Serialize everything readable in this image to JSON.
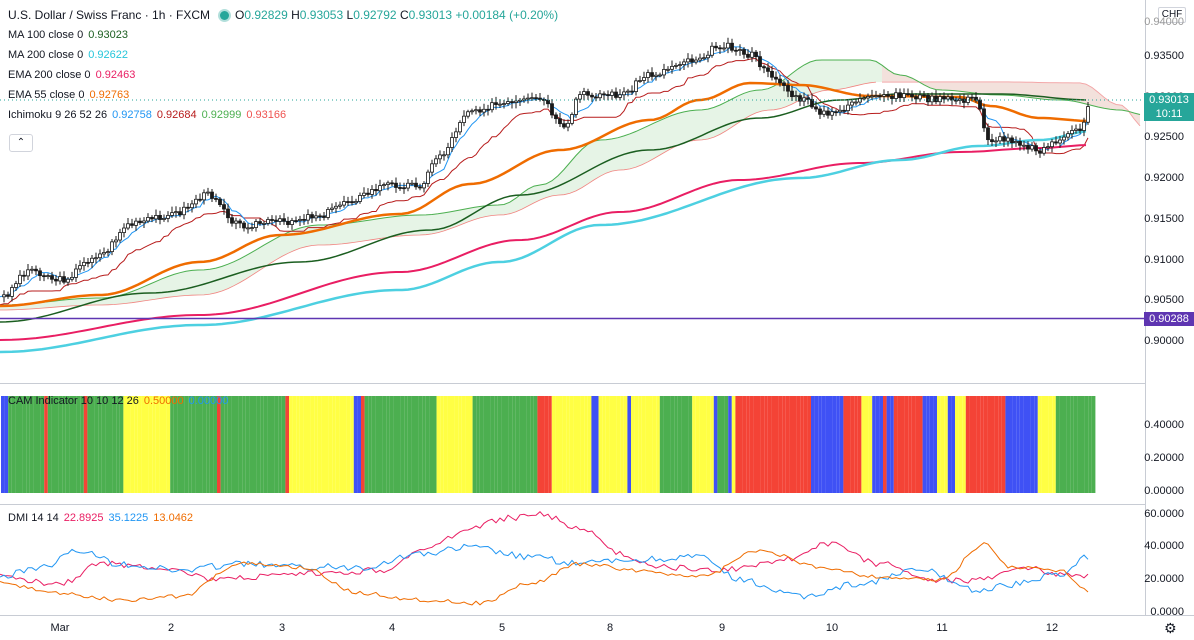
{
  "header": {
    "symbol": "U.S. Dollar / Swiss Franc · 1h · FXCM",
    "open_label": "O",
    "open": "0.92829",
    "high_label": "H",
    "high": "0.93053",
    "low_label": "L",
    "low": "0.92792",
    "close_label": "C",
    "close": "0.93013",
    "change": "+0.00184 (+0.20%)"
  },
  "legends": [
    {
      "name": "MA 100 close 0",
      "values": [
        "0.93023"
      ],
      "colors": [
        "#1b5e20"
      ]
    },
    {
      "name": "MA 200 close 0",
      "values": [
        "0.92622"
      ],
      "colors": [
        "#26c6da"
      ]
    },
    {
      "name": "EMA 200 close 0",
      "values": [
        "0.92463"
      ],
      "colors": [
        "#e91e63"
      ]
    },
    {
      "name": "EMA 55 close 0",
      "values": [
        "0.92763"
      ],
      "colors": [
        "#ef6c00"
      ]
    },
    {
      "name": "Ichimoku 9 26 52 26",
      "values": [
        "0.92758",
        "0.92684",
        "0.92999",
        "0.93166"
      ],
      "colors": [
        "#2196f3",
        "#b71c1c",
        "#4caf50",
        "#ef5350"
      ]
    }
  ],
  "collapse_icon": "chevron-up-icon",
  "currency": "CHF",
  "price_axis": [
    "0.93500",
    "0.93000",
    "0.92500",
    "0.92000",
    "0.91500",
    "0.91000",
    "0.90500",
    "0.90000"
  ],
  "price_axis_top": "0.94000",
  "current_price": "0.93013",
  "countdown": "10:11",
  "hline_price": "0.90288",
  "cam": {
    "label": "CAM Indicator 10 10 12 26",
    "values": [
      "0.50000",
      "0.00000"
    ],
    "axis": [
      "0.40000",
      "0.20000",
      "0.00000"
    ]
  },
  "dmi": {
    "label": "DMI 14 14",
    "values": [
      "22.8925",
      "35.1225",
      "13.0462"
    ],
    "colors": [
      "#e91e63",
      "#2196f3",
      "#ef6c00"
    ],
    "axis": [
      "60.0000",
      "40.0000",
      "20.0000",
      "0.0000"
    ]
  },
  "x_axis": [
    "Mar",
    "2",
    "3",
    "4",
    "5",
    "8",
    "9",
    "10",
    "11",
    "12"
  ],
  "settings_icon": "gear-icon",
  "colors": {
    "up": "#26a69a",
    "down": "#ef5350",
    "cam_green": "#4caf50",
    "cam_red": "#f44336",
    "cam_blue": "#3f51f5",
    "cam_yellow": "#ffff44",
    "hline": "#5e35b1"
  }
}
